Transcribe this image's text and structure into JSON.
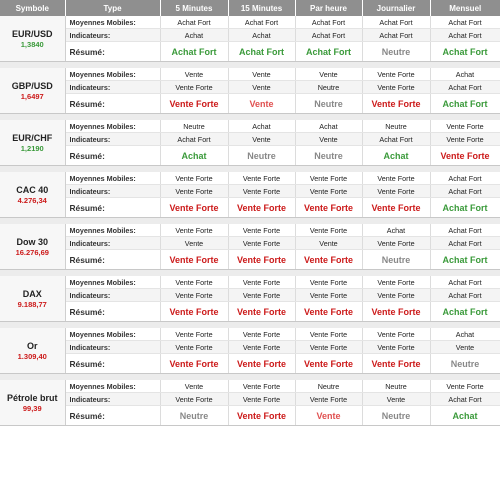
{
  "headers": [
    "Symbole",
    "Type",
    "5 Minutes",
    "15 Minutes",
    "Par heure",
    "Journalier",
    "Mensuel"
  ],
  "row_labels": {
    "ma": "Moyennes Mobiles:",
    "ind": "Indicateurs:",
    "sum": "Résumé:"
  },
  "colors": {
    "buy": "#3a9a3a",
    "sell": "#cc1a1a",
    "sell_light": "#e05050",
    "neutral": "#888888",
    "header_bg": "#8f8f8f"
  },
  "symbols": [
    {
      "name": "EUR/USD",
      "price": "1,3840",
      "price_tone": "buy",
      "ma": [
        "Achat Fort",
        "Achat Fort",
        "Achat Fort",
        "Achat Fort",
        "Achat Fort"
      ],
      "ind": [
        "Achat",
        "Achat",
        "Achat Fort",
        "Achat Fort",
        "Achat Fort"
      ],
      "sum": [
        {
          "text": "Achat Fort",
          "tone": "buy"
        },
        {
          "text": "Achat Fort",
          "tone": "buy"
        },
        {
          "text": "Achat Fort",
          "tone": "buy"
        },
        {
          "text": "Neutre",
          "tone": "neutral"
        },
        {
          "text": "Achat Fort",
          "tone": "buy"
        }
      ]
    },
    {
      "name": "GBP/USD",
      "price": "1,6497",
      "price_tone": "sell",
      "ma": [
        "Vente",
        "Vente",
        "Vente",
        "Vente Forte",
        "Achat"
      ],
      "ind": [
        "Vente Forte",
        "Vente",
        "Neutre",
        "Vente Forte",
        "Achat Fort"
      ],
      "sum": [
        {
          "text": "Vente Forte",
          "tone": "sell"
        },
        {
          "text": "Vente",
          "tone": "sell-light"
        },
        {
          "text": "Neutre",
          "tone": "neutral"
        },
        {
          "text": "Vente Forte",
          "tone": "sell"
        },
        {
          "text": "Achat Fort",
          "tone": "buy"
        }
      ]
    },
    {
      "name": "EUR/CHF",
      "price": "1,2190",
      "price_tone": "buy",
      "ma": [
        "Neutre",
        "Achat",
        "Achat",
        "Neutre",
        "Vente Forte"
      ],
      "ind": [
        "Achat Fort",
        "Vente",
        "Vente",
        "Achat Fort",
        "Vente Forte"
      ],
      "sum": [
        {
          "text": "Achat",
          "tone": "buy"
        },
        {
          "text": "Neutre",
          "tone": "neutral"
        },
        {
          "text": "Neutre",
          "tone": "neutral"
        },
        {
          "text": "Achat",
          "tone": "buy"
        },
        {
          "text": "Vente Forte",
          "tone": "sell"
        }
      ]
    },
    {
      "name": "CAC 40",
      "price": "4.276,34",
      "price_tone": "sell",
      "ma": [
        "Vente Forte",
        "Vente Forte",
        "Vente Forte",
        "Vente Forte",
        "Achat Fort"
      ],
      "ind": [
        "Vente Forte",
        "Vente Forte",
        "Vente Forte",
        "Vente Forte",
        "Achat Fort"
      ],
      "sum": [
        {
          "text": "Vente Forte",
          "tone": "sell"
        },
        {
          "text": "Vente Forte",
          "tone": "sell"
        },
        {
          "text": "Vente Forte",
          "tone": "sell"
        },
        {
          "text": "Vente Forte",
          "tone": "sell"
        },
        {
          "text": "Achat Fort",
          "tone": "buy"
        }
      ]
    },
    {
      "name": "Dow 30",
      "price": "16.276,69",
      "price_tone": "sell",
      "ma": [
        "Vente Forte",
        "Vente Forte",
        "Vente Forte",
        "Achat",
        "Achat Fort"
      ],
      "ind": [
        "Vente",
        "Vente Forte",
        "Vente",
        "Vente Forte",
        "Achat Fort"
      ],
      "sum": [
        {
          "text": "Vente Forte",
          "tone": "sell"
        },
        {
          "text": "Vente Forte",
          "tone": "sell"
        },
        {
          "text": "Vente Forte",
          "tone": "sell"
        },
        {
          "text": "Neutre",
          "tone": "neutral"
        },
        {
          "text": "Achat Fort",
          "tone": "buy"
        }
      ]
    },
    {
      "name": "DAX",
      "price": "9.188,77",
      "price_tone": "sell",
      "ma": [
        "Vente Forte",
        "Vente Forte",
        "Vente Forte",
        "Vente Forte",
        "Achat Fort"
      ],
      "ind": [
        "Vente Forte",
        "Vente Forte",
        "Vente Forte",
        "Vente Forte",
        "Achat Fort"
      ],
      "sum": [
        {
          "text": "Vente Forte",
          "tone": "sell"
        },
        {
          "text": "Vente Forte",
          "tone": "sell"
        },
        {
          "text": "Vente Forte",
          "tone": "sell"
        },
        {
          "text": "Vente Forte",
          "tone": "sell"
        },
        {
          "text": "Achat Fort",
          "tone": "buy"
        }
      ]
    },
    {
      "name": "Or",
      "price": "1.309,40",
      "price_tone": "sell",
      "ma": [
        "Vente Forte",
        "Vente Forte",
        "Vente Forte",
        "Vente Forte",
        "Achat"
      ],
      "ind": [
        "Vente Forte",
        "Vente Forte",
        "Vente Forte",
        "Vente Forte",
        "Vente"
      ],
      "sum": [
        {
          "text": "Vente Forte",
          "tone": "sell"
        },
        {
          "text": "Vente Forte",
          "tone": "sell"
        },
        {
          "text": "Vente Forte",
          "tone": "sell"
        },
        {
          "text": "Vente Forte",
          "tone": "sell"
        },
        {
          "text": "Neutre",
          "tone": "neutral"
        }
      ]
    },
    {
      "name": "Pétrole brut",
      "price": "99,39",
      "price_tone": "sell",
      "ma": [
        "Vente",
        "Vente Forte",
        "Neutre",
        "Neutre",
        "Vente Forte"
      ],
      "ind": [
        "Vente Forte",
        "Vente Forte",
        "Vente Forte",
        "Vente",
        "Achat Fort"
      ],
      "sum": [
        {
          "text": "Neutre",
          "tone": "neutral"
        },
        {
          "text": "Vente Forte",
          "tone": "sell"
        },
        {
          "text": "Vente",
          "tone": "sell-light"
        },
        {
          "text": "Neutre",
          "tone": "neutral"
        },
        {
          "text": "Achat",
          "tone": "buy"
        }
      ]
    }
  ]
}
